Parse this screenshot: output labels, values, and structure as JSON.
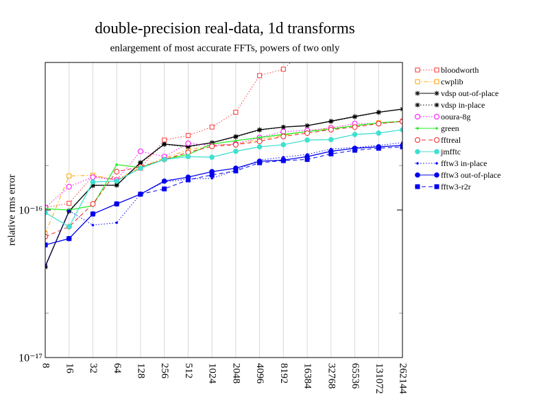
{
  "chart_data": {
    "type": "line",
    "title": "double-precision real-data, 1d transforms",
    "subtitle": "enlargement of most accurate FFTs, powers of two only",
    "y_label": "relative rms error",
    "log_y": true,
    "grid": "x",
    "legend": "right",
    "categories": [
      "8",
      "16",
      "32",
      "64",
      "128",
      "256",
      "512",
      "1024",
      "2048",
      "4096",
      "8192",
      "16384",
      "32768",
      "65536",
      "131072",
      "262144"
    ],
    "ylim": [
      1e-17,
      1e-15
    ],
    "yticks": [
      {
        "value": 1e-17,
        "label": "10⁻¹⁷"
      },
      {
        "value": 1e-16,
        "label": "10⁻¹⁶"
      }
    ],
    "minor_yticks": [
      2e-17,
      2e-16
    ],
    "series": [
      {
        "name": "bloodworth",
        "color": "#ff3030",
        "dash": "dotted",
        "marker": "square-open",
        "values": [
          1.04e-16,
          1.11e-16,
          1.7e-16,
          1.6e-16,
          1.92e-16,
          2.98e-16,
          3.2e-16,
          3.65e-16,
          4.6e-16,
          8.15e-16,
          9e-16,
          1.27e-15,
          null,
          null,
          null,
          null
        ]
      },
      {
        "name": "cwplib",
        "color": "#ffa500",
        "dash": "dashdot",
        "marker": "square-open",
        "values": [
          6.9e-17,
          1.7e-16,
          1.72e-16,
          1.6e-16,
          1.95e-16,
          2.25e-16,
          2.55e-16,
          2.75e-16,
          2.8e-16,
          3e-16,
          3.2e-16,
          3.4e-16,
          3.6e-16,
          3.7e-16,
          3.9e-16,
          4e-16
        ]
      },
      {
        "name": "vdsp out-of-place",
        "color": "#000000",
        "dash": "solid",
        "marker": "star",
        "values": [
          4.15e-17,
          9.8e-17,
          1.47e-16,
          1.47e-16,
          2.1e-16,
          2.8e-16,
          2.7e-16,
          2.86e-16,
          3.15e-16,
          3.5e-16,
          3.65e-16,
          3.73e-16,
          4e-16,
          4.3e-16,
          4.6e-16,
          4.83e-16
        ]
      },
      {
        "name": "vdsp in-place",
        "color": "#000000",
        "dash": "dotted",
        "marker": "star",
        "values": [
          4.1e-17,
          9.9e-17,
          1.46e-16,
          1.48e-16,
          2.08e-16,
          2.78e-16,
          2.68e-16,
          2.85e-16,
          3.13e-16,
          3.48e-16,
          3.64e-16,
          3.72e-16,
          3.98e-16,
          4.28e-16,
          4.58e-16,
          4.82e-16
        ]
      },
      {
        "name": "ooura-8g",
        "color": "#ff00ff",
        "dash": "dotted",
        "marker": "circle-open",
        "values": [
          1.04e-16,
          1.44e-16,
          1.67e-16,
          1.6e-16,
          2.5e-16,
          2.3e-16,
          2.83e-16,
          2.74e-16,
          2.8e-16,
          3.1e-16,
          3.4e-16,
          3.46e-16,
          3.6e-16,
          3.85e-16,
          3.85e-16,
          4e-16
        ]
      },
      {
        "name": "green",
        "color": "#22ee22",
        "dash": "solid",
        "marker": "dot",
        "values": [
          1.02e-16,
          1e-16,
          1.07e-16,
          2.03e-16,
          1.94e-16,
          2.2e-16,
          2.38e-16,
          2.8e-16,
          2.95e-16,
          3.1e-16,
          3.25e-16,
          3.4e-16,
          3.54e-16,
          3.73e-16,
          3.9e-16,
          3.98e-16
        ]
      },
      {
        "name": "fftreal",
        "color": "#ee2020",
        "dash": "dashed",
        "marker": "circle-open",
        "values": [
          6.6e-17,
          7.7e-17,
          1.1e-16,
          1.82e-16,
          1.96e-16,
          2.2e-16,
          2.46e-16,
          2.7e-16,
          2.77e-16,
          2.92e-16,
          3.15e-16,
          3.32e-16,
          3.5e-16,
          3.65e-16,
          3.85e-16,
          3.98e-16
        ]
      },
      {
        "name": "jmfftc",
        "color": "#40e0d0",
        "dash": "solid",
        "marker": "circle",
        "values": [
          9.6e-17,
          7.7e-17,
          1.55e-16,
          1.57e-16,
          1.92e-16,
          2.2e-16,
          2.3e-16,
          2.28e-16,
          2.5e-16,
          2.68e-16,
          2.77e-16,
          2.98e-16,
          3e-16,
          3.25e-16,
          3.32e-16,
          3.5e-16
        ]
      },
      {
        "name": "fftw3 in-place",
        "color": "#0000ff",
        "dash": "dotted",
        "marker": "dot",
        "values": [
          4.2e-17,
          9.9e-17,
          7.9e-17,
          8.2e-17,
          1.28e-16,
          1.55e-16,
          1.62e-16,
          1.64e-16,
          1.86e-16,
          2.18e-16,
          2.28e-16,
          2.38e-16,
          2.59e-16,
          2.65e-16,
          2.74e-16,
          2.86e-16
        ]
      },
      {
        "name": "fftw3 out-of-place",
        "color": "#0000ee",
        "dash": "solid",
        "marker": "circle",
        "values": [
          5.8e-17,
          6.4e-17,
          9.4e-17,
          1.1e-16,
          1.28e-16,
          1.57e-16,
          1.67e-16,
          1.82e-16,
          1.92e-16,
          2.14e-16,
          2.18e-16,
          2.3e-16,
          2.5e-16,
          2.62e-16,
          2.68e-16,
          2.74e-16
        ]
      },
      {
        "name": "fftw3-r2r",
        "color": "#0000ee",
        "dash": "dashed",
        "marker": "square",
        "values": [
          5.8e-17,
          6.4e-17,
          9.4e-17,
          1.1e-16,
          1.28e-16,
          1.39e-16,
          1.6e-16,
          1.73e-16,
          1.84e-16,
          2.09e-16,
          2.16e-16,
          2.2e-16,
          2.4e-16,
          2.54e-16,
          2.62e-16,
          2.68e-16
        ]
      }
    ]
  }
}
